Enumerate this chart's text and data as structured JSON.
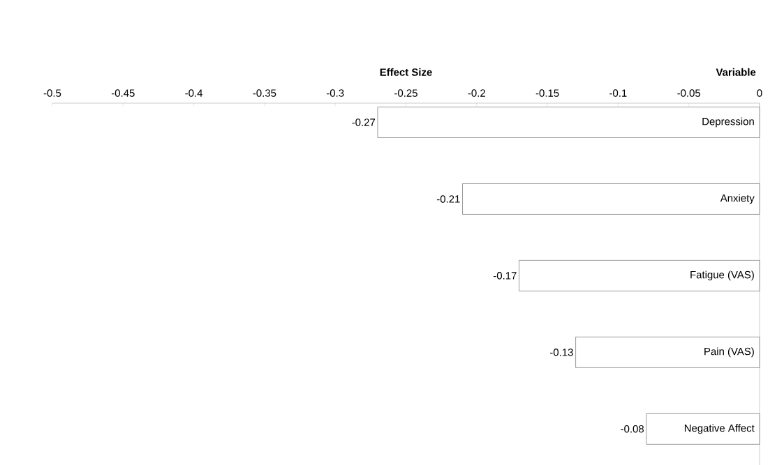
{
  "chart_data": {
    "type": "bar",
    "orientation": "horizontal",
    "xlabel": "Effect Size",
    "ylabel": "Variable",
    "categories": [
      "Depression",
      "Anxiety",
      "Fatigue (VAS)",
      "Pain (VAS)",
      "Negative Affect"
    ],
    "values": [
      -0.27,
      -0.21,
      -0.17,
      -0.13,
      -0.08
    ],
    "color": "#ffffff",
    "data_labels": true,
    "xlim": [
      -0.5,
      0
    ],
    "xticks": [
      -0.5,
      -0.45,
      -0.4,
      -0.35,
      -0.3,
      -0.25,
      -0.2,
      -0.15,
      -0.1,
      -0.05,
      0
    ],
    "grid": false
  }
}
